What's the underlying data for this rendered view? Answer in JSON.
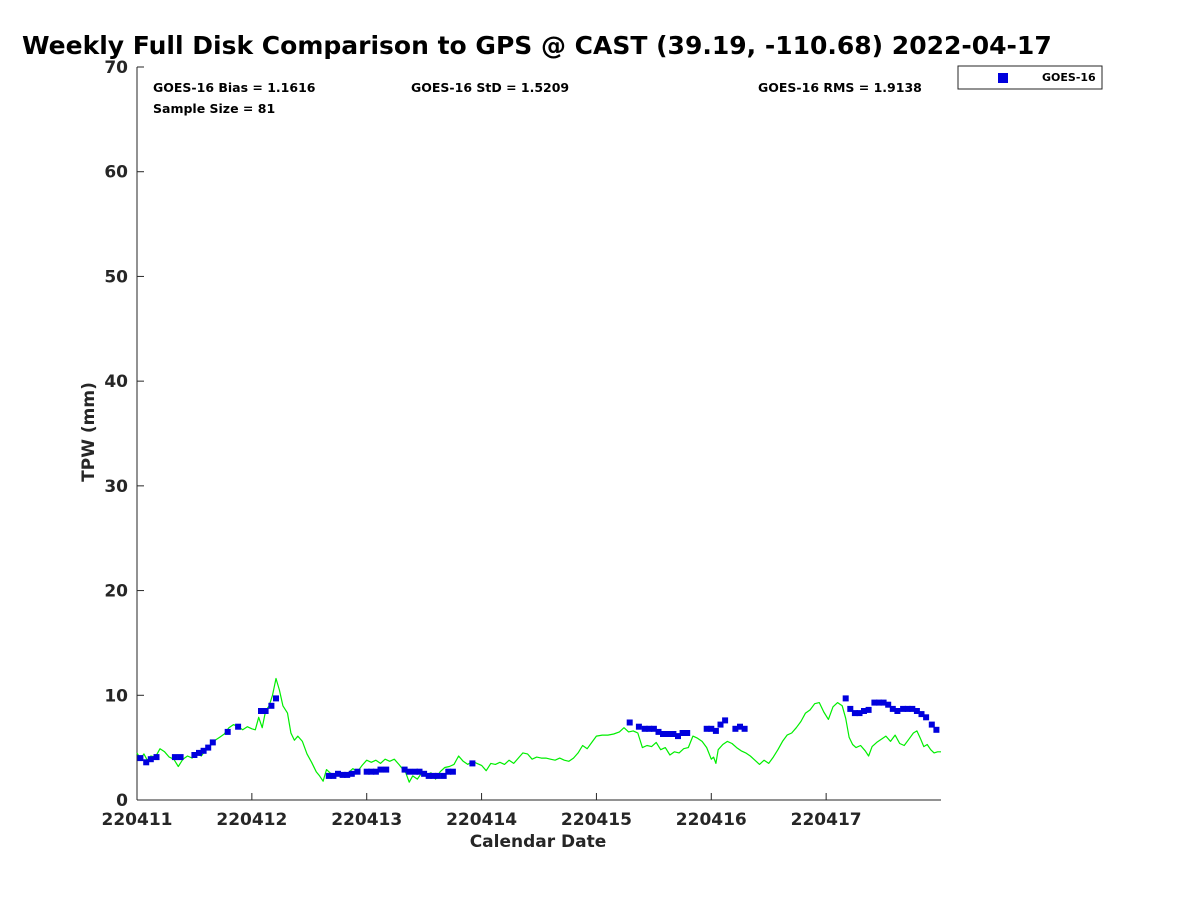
{
  "chart_data": {
    "type": "scatter",
    "title": "Weekly Full Disk Comparison to GPS @ CAST (39.19, -110.68) 2022-04-17",
    "xlabel": "Calendar Date",
    "ylabel": "TPW (mm)",
    "xlim": [
      0,
      7
    ],
    "ylim": [
      0,
      70
    ],
    "x_tick_labels": [
      "220411",
      "220412",
      "220413",
      "220414",
      "220415",
      "220416",
      "220417"
    ],
    "x_tick_values": [
      0,
      1,
      2,
      3,
      4,
      5,
      6
    ],
    "y_ticks": [
      0,
      10,
      20,
      30,
      40,
      50,
      60,
      70
    ],
    "grid": false,
    "legend_position": "top-right, outside plot",
    "stats": {
      "bias": "GOES-16 Bias = 1.1616",
      "std": "GOES-16 StD = 1.5209",
      "rms": "GOES-16 RMS = 1.9138",
      "sample_size": "Sample Size = 81"
    },
    "series": [
      {
        "name": "GOES-16",
        "kind": "scatter",
        "color": "#0000dd",
        "marker": "square",
        "points": [
          [
            0.03,
            4.0
          ],
          [
            0.08,
            3.6
          ],
          [
            0.12,
            3.9
          ],
          [
            0.17,
            4.1
          ],
          [
            0.33,
            4.1
          ],
          [
            0.38,
            4.1
          ],
          [
            0.5,
            4.3
          ],
          [
            0.54,
            4.5
          ],
          [
            0.58,
            4.7
          ],
          [
            0.62,
            5.0
          ],
          [
            0.66,
            5.5
          ],
          [
            0.79,
            6.5
          ],
          [
            0.88,
            7.0
          ],
          [
            1.08,
            8.5
          ],
          [
            1.12,
            8.5
          ],
          [
            1.17,
            9.0
          ],
          [
            1.21,
            9.7
          ],
          [
            1.67,
            2.3
          ],
          [
            1.71,
            2.3
          ],
          [
            1.75,
            2.5
          ],
          [
            1.79,
            2.4
          ],
          [
            1.83,
            2.4
          ],
          [
            1.87,
            2.5
          ],
          [
            1.92,
            2.7
          ],
          [
            2.0,
            2.7
          ],
          [
            2.04,
            2.7
          ],
          [
            2.08,
            2.7
          ],
          [
            2.12,
            2.9
          ],
          [
            2.17,
            2.9
          ],
          [
            2.33,
            2.9
          ],
          [
            2.37,
            2.7
          ],
          [
            2.42,
            2.7
          ],
          [
            2.46,
            2.7
          ],
          [
            2.5,
            2.5
          ],
          [
            2.54,
            2.3
          ],
          [
            2.58,
            2.3
          ],
          [
            2.62,
            2.3
          ],
          [
            2.67,
            2.3
          ],
          [
            2.71,
            2.7
          ],
          [
            2.75,
            2.7
          ],
          [
            2.92,
            3.5
          ],
          [
            4.29,
            7.4
          ],
          [
            4.37,
            7.0
          ],
          [
            4.42,
            6.8
          ],
          [
            4.46,
            6.8
          ],
          [
            4.5,
            6.8
          ],
          [
            4.54,
            6.5
          ],
          [
            4.58,
            6.3
          ],
          [
            4.62,
            6.3
          ],
          [
            4.67,
            6.3
          ],
          [
            4.71,
            6.1
          ],
          [
            4.75,
            6.4
          ],
          [
            4.79,
            6.4
          ],
          [
            4.96,
            6.8
          ],
          [
            5.0,
            6.8
          ],
          [
            5.04,
            6.6
          ],
          [
            5.08,
            7.2
          ],
          [
            5.12,
            7.6
          ],
          [
            5.21,
            6.8
          ],
          [
            5.25,
            7.0
          ],
          [
            5.29,
            6.8
          ],
          [
            6.17,
            9.7
          ],
          [
            6.21,
            8.7
          ],
          [
            6.25,
            8.3
          ],
          [
            6.29,
            8.3
          ],
          [
            6.33,
            8.5
          ],
          [
            6.37,
            8.6
          ],
          [
            6.42,
            9.3
          ],
          [
            6.46,
            9.3
          ],
          [
            6.5,
            9.3
          ],
          [
            6.54,
            9.1
          ],
          [
            6.58,
            8.7
          ],
          [
            6.62,
            8.5
          ],
          [
            6.67,
            8.7
          ],
          [
            6.71,
            8.7
          ],
          [
            6.75,
            8.7
          ],
          [
            6.79,
            8.5
          ],
          [
            6.83,
            8.2
          ],
          [
            6.87,
            7.9
          ],
          [
            6.92,
            7.2
          ],
          [
            6.96,
            6.7
          ]
        ]
      },
      {
        "kind": "line",
        "color": "#00ee00",
        "points": [
          [
            0.0,
            4.5
          ],
          [
            0.03,
            3.9
          ],
          [
            0.06,
            4.4
          ],
          [
            0.09,
            3.8
          ],
          [
            0.12,
            4.2
          ],
          [
            0.16,
            4.1
          ],
          [
            0.2,
            4.9
          ],
          [
            0.24,
            4.6
          ],
          [
            0.28,
            4.1
          ],
          [
            0.32,
            3.9
          ],
          [
            0.36,
            3.2
          ],
          [
            0.4,
            3.9
          ],
          [
            0.44,
            4.2
          ],
          [
            0.48,
            4.0
          ],
          [
            0.52,
            4.4
          ],
          [
            0.56,
            4.2
          ],
          [
            0.6,
            4.8
          ],
          [
            0.64,
            5.2
          ],
          [
            0.68,
            5.7
          ],
          [
            0.72,
            6.0
          ],
          [
            0.76,
            6.3
          ],
          [
            0.8,
            6.9
          ],
          [
            0.84,
            7.2
          ],
          [
            0.88,
            7.0
          ],
          [
            0.92,
            6.7
          ],
          [
            0.96,
            7.0
          ],
          [
            1.0,
            6.8
          ],
          [
            1.03,
            6.7
          ],
          [
            1.06,
            7.9
          ],
          [
            1.09,
            6.9
          ],
          [
            1.12,
            8.5
          ],
          [
            1.15,
            9.0
          ],
          [
            1.18,
            10.0
          ],
          [
            1.21,
            11.6
          ],
          [
            1.24,
            10.5
          ],
          [
            1.27,
            9.0
          ],
          [
            1.31,
            8.3
          ],
          [
            1.34,
            6.4
          ],
          [
            1.37,
            5.7
          ],
          [
            1.4,
            6.1
          ],
          [
            1.44,
            5.6
          ],
          [
            1.48,
            4.4
          ],
          [
            1.52,
            3.6
          ],
          [
            1.56,
            2.7
          ],
          [
            1.59,
            2.3
          ],
          [
            1.62,
            1.8
          ],
          [
            1.65,
            2.9
          ],
          [
            1.68,
            2.6
          ],
          [
            1.72,
            2.2
          ],
          [
            1.76,
            2.6
          ],
          [
            1.8,
            2.4
          ],
          [
            1.84,
            2.6
          ],
          [
            1.88,
            3.0
          ],
          [
            1.92,
            2.7
          ],
          [
            1.96,
            3.3
          ],
          [
            2.0,
            3.8
          ],
          [
            2.04,
            3.6
          ],
          [
            2.08,
            3.8
          ],
          [
            2.12,
            3.5
          ],
          [
            2.16,
            3.9
          ],
          [
            2.2,
            3.7
          ],
          [
            2.24,
            3.9
          ],
          [
            2.28,
            3.4
          ],
          [
            2.31,
            3.0
          ],
          [
            2.34,
            2.6
          ],
          [
            2.37,
            1.7
          ],
          [
            2.4,
            2.3
          ],
          [
            2.44,
            2.0
          ],
          [
            2.48,
            2.6
          ],
          [
            2.52,
            2.4
          ],
          [
            2.56,
            2.6
          ],
          [
            2.6,
            2.0
          ],
          [
            2.64,
            2.7
          ],
          [
            2.68,
            3.1
          ],
          [
            2.72,
            3.2
          ],
          [
            2.76,
            3.4
          ],
          [
            2.8,
            4.2
          ],
          [
            2.84,
            3.7
          ],
          [
            2.88,
            3.4
          ],
          [
            2.92,
            3.7
          ],
          [
            2.96,
            3.5
          ],
          [
            3.0,
            3.3
          ],
          [
            3.04,
            2.8
          ],
          [
            3.08,
            3.5
          ],
          [
            3.12,
            3.4
          ],
          [
            3.16,
            3.6
          ],
          [
            3.2,
            3.4
          ],
          [
            3.24,
            3.8
          ],
          [
            3.28,
            3.5
          ],
          [
            3.32,
            4.0
          ],
          [
            3.36,
            4.5
          ],
          [
            3.4,
            4.4
          ],
          [
            3.44,
            3.9
          ],
          [
            3.48,
            4.1
          ],
          [
            3.52,
            4.0
          ],
          [
            3.56,
            4.0
          ],
          [
            3.6,
            3.9
          ],
          [
            3.64,
            3.8
          ],
          [
            3.68,
            4.0
          ],
          [
            3.72,
            3.8
          ],
          [
            3.76,
            3.7
          ],
          [
            3.8,
            4.0
          ],
          [
            3.84,
            4.5
          ],
          [
            3.88,
            5.2
          ],
          [
            3.92,
            4.9
          ],
          [
            3.96,
            5.5
          ],
          [
            4.0,
            6.1
          ],
          [
            4.05,
            6.2
          ],
          [
            4.1,
            6.2
          ],
          [
            4.15,
            6.3
          ],
          [
            4.2,
            6.5
          ],
          [
            4.24,
            6.9
          ],
          [
            4.28,
            6.5
          ],
          [
            4.32,
            6.6
          ],
          [
            4.36,
            6.4
          ],
          [
            4.4,
            5.0
          ],
          [
            4.44,
            5.2
          ],
          [
            4.48,
            5.1
          ],
          [
            4.52,
            5.5
          ],
          [
            4.56,
            4.8
          ],
          [
            4.6,
            5.0
          ],
          [
            4.64,
            4.3
          ],
          [
            4.68,
            4.6
          ],
          [
            4.72,
            4.5
          ],
          [
            4.76,
            4.9
          ],
          [
            4.8,
            5.0
          ],
          [
            4.84,
            6.1
          ],
          [
            4.88,
            5.9
          ],
          [
            4.92,
            5.6
          ],
          [
            4.96,
            5.0
          ],
          [
            5.0,
            3.9
          ],
          [
            5.02,
            4.1
          ],
          [
            5.04,
            3.5
          ],
          [
            5.06,
            4.8
          ],
          [
            5.1,
            5.3
          ],
          [
            5.14,
            5.6
          ],
          [
            5.18,
            5.4
          ],
          [
            5.22,
            5.0
          ],
          [
            5.26,
            4.7
          ],
          [
            5.3,
            4.5
          ],
          [
            5.34,
            4.2
          ],
          [
            5.38,
            3.8
          ],
          [
            5.42,
            3.4
          ],
          [
            5.46,
            3.8
          ],
          [
            5.5,
            3.5
          ],
          [
            5.54,
            4.1
          ],
          [
            5.58,
            4.8
          ],
          [
            5.62,
            5.6
          ],
          [
            5.66,
            6.2
          ],
          [
            5.7,
            6.4
          ],
          [
            5.74,
            6.9
          ],
          [
            5.78,
            7.5
          ],
          [
            5.82,
            8.3
          ],
          [
            5.86,
            8.6
          ],
          [
            5.9,
            9.2
          ],
          [
            5.94,
            9.3
          ],
          [
            5.98,
            8.4
          ],
          [
            6.02,
            7.7
          ],
          [
            6.06,
            8.9
          ],
          [
            6.1,
            9.3
          ],
          [
            6.14,
            9.0
          ],
          [
            6.17,
            7.8
          ],
          [
            6.2,
            6.0
          ],
          [
            6.23,
            5.3
          ],
          [
            6.26,
            5.0
          ],
          [
            6.3,
            5.2
          ],
          [
            6.34,
            4.7
          ],
          [
            6.37,
            4.2
          ],
          [
            6.4,
            5.1
          ],
          [
            6.44,
            5.5
          ],
          [
            6.48,
            5.8
          ],
          [
            6.52,
            6.1
          ],
          [
            6.56,
            5.6
          ],
          [
            6.6,
            6.2
          ],
          [
            6.64,
            5.4
          ],
          [
            6.68,
            5.2
          ],
          [
            6.72,
            5.8
          ],
          [
            6.76,
            6.4
          ],
          [
            6.79,
            6.6
          ],
          [
            6.82,
            5.9
          ],
          [
            6.85,
            5.1
          ],
          [
            6.88,
            5.3
          ],
          [
            6.91,
            4.8
          ],
          [
            6.94,
            4.5
          ],
          [
            6.97,
            4.6
          ],
          [
            7.0,
            4.6
          ]
        ]
      }
    ]
  }
}
